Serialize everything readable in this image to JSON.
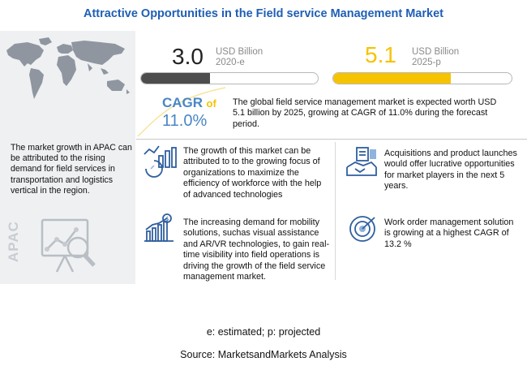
{
  "title": "Attractive Opportunities in the Field service Management Market",
  "left_panel": {
    "text": "The market growth in APAC can be attributed to the rising demand for field services in transportation and logistics vertical  in the region.",
    "region_label": "APAC"
  },
  "market_2020": {
    "value": "3.0",
    "unit": "USD Billion",
    "year": "2020-e",
    "bar_fill_fraction": 0.39,
    "color": "#4d4d4d"
  },
  "market_2025": {
    "value": "5.1",
    "unit": "USD Billion",
    "year": "2025-p",
    "bar_fill_fraction": 0.66,
    "color": "#f5c300"
  },
  "cagr": {
    "label": "CAGR",
    "of": "of",
    "value": "11.0%"
  },
  "summary": "The global field service management  market is expected worth USD 5.1 billion by 2025, growing at CAGR of 11.0% during the forecast period.",
  "points": [
    {
      "icon": "growth-chart-icon",
      "text": "The growth of this market can be attributed to to the growing focus of organizations to maximize the efficiency of workforce with the help of advanced technologies"
    },
    {
      "icon": "dollar-chart-icon",
      "text": "The increasing demand for mobility solutions, suchas visual assistance and AR/VR technologies, to gain real-time visibility into field operations is driving the growth of the field service management market."
    },
    {
      "icon": "handshake-icon",
      "text": "Acquisitions and product launches would offer lucrative opportunities for market players in the next 5 years."
    },
    {
      "icon": "target-icon",
      "text": "Work order management solution is growing at a highest CAGR of  13.2 %"
    }
  ],
  "footnote": "e: estimated; p: projected",
  "source": "Source: MarketsandMarkets Analysis",
  "colors": {
    "title": "#1f5fb4",
    "accent_blue": "#4a86c5",
    "accent_yellow": "#f5c300",
    "panel_bg": "#eef0f2"
  }
}
